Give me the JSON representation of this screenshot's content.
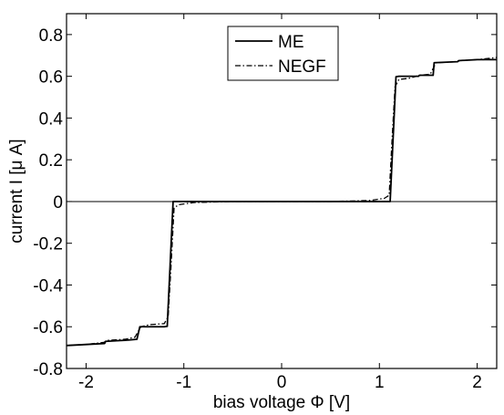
{
  "chart_data": {
    "type": "line",
    "title": "",
    "xlabel": "bias voltage Φ [V]",
    "ylabel": "current I [μ A]",
    "xlim": [
      -2.2,
      2.2
    ],
    "ylim": [
      -0.8,
      0.9
    ],
    "xticks": [
      -2,
      -1,
      0,
      1,
      2
    ],
    "xtick_labels": [
      "-2",
      "-1",
      "0",
      "1",
      "2"
    ],
    "yticks": [
      -0.8,
      -0.6,
      -0.4,
      -0.2,
      0,
      0.2,
      0.4,
      0.6,
      0.8
    ],
    "ytick_labels": [
      "-0.8",
      "-0.6",
      "-0.4",
      "-0.2",
      "0",
      "0.2",
      "0.4",
      "0.6",
      "0.8"
    ],
    "grid": false,
    "zero_line": true,
    "legend_position": "top-center",
    "series": [
      {
        "name": "ME",
        "style": "solid",
        "color": "#000000",
        "x": [
          -2.2,
          -2.0,
          -1.81,
          -1.8,
          -1.6,
          -1.48,
          -1.45,
          -1.35,
          -1.2,
          -1.17,
          -1.14,
          -1.11,
          -1.0,
          -0.5,
          0,
          0.5,
          1.0,
          1.11,
          1.14,
          1.17,
          1.2,
          1.3,
          1.4,
          1.41,
          1.55,
          1.56,
          1.8,
          1.81,
          2.0,
          2.2
        ],
        "y": [
          -0.69,
          -0.685,
          -0.68,
          -0.67,
          -0.665,
          -0.66,
          -0.6,
          -0.6,
          -0.6,
          -0.598,
          -0.3,
          0.0,
          0.0,
          0.0,
          0.0,
          0.0,
          0.0,
          0.0,
          0.3,
          0.598,
          0.6,
          0.6,
          0.6,
          0.605,
          0.605,
          0.665,
          0.67,
          0.675,
          0.68,
          0.68
        ]
      },
      {
        "name": "NEGF",
        "style": "dash-dot",
        "color": "#000000",
        "x": [
          -2.2,
          -2.0,
          -1.82,
          -1.78,
          -1.6,
          -1.5,
          -1.44,
          -1.35,
          -1.2,
          -1.16,
          -1.13,
          -1.1,
          -1.05,
          -0.9,
          -0.5,
          0,
          0.5,
          0.9,
          1.05,
          1.1,
          1.13,
          1.16,
          1.2,
          1.3,
          1.38,
          1.42,
          1.52,
          1.58,
          1.8,
          1.82,
          2.0,
          2.2
        ],
        "y": [
          -0.69,
          -0.685,
          -0.675,
          -0.665,
          -0.66,
          -0.65,
          -0.6,
          -0.59,
          -0.585,
          -0.55,
          -0.3,
          -0.03,
          -0.015,
          -0.005,
          0.0,
          0.0,
          0.0,
          0.005,
          0.015,
          0.03,
          0.3,
          0.55,
          0.585,
          0.59,
          0.6,
          0.605,
          0.61,
          0.665,
          0.67,
          0.675,
          0.68,
          0.69
        ]
      }
    ]
  }
}
